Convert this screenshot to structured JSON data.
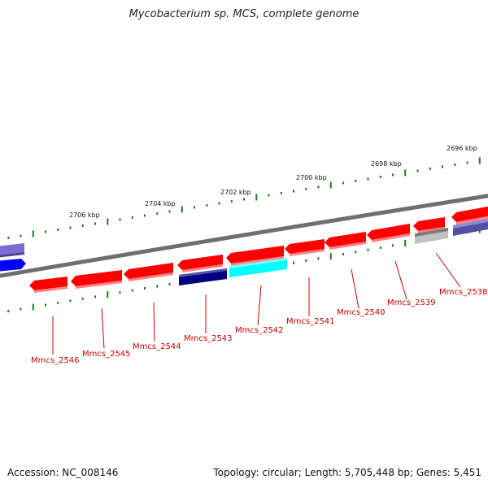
{
  "title": "Mycobacterium sp. MCS, complete genome",
  "accession": "Accession: NC_008146",
  "summary": "Topology: circular; Length: 5,705,448 bp; Genes: 5,451",
  "colors": {
    "backbone": "#808080",
    "gene_red": "#ff0000",
    "gene_navy": "#000080",
    "gene_cyan": "#00ffff",
    "gene_gray": "#c0c0c0",
    "gene_slate": "#5a5aa0",
    "gene_blue": "#0000ff",
    "tick": "#1a7a1a",
    "label": "#cc0000"
  },
  "kbp_labels": [
    "2706 kbp",
    "2704 kbp",
    "2702 kbp",
    "2700 kbp",
    "2698 kbp",
    "2696 kbp"
  ],
  "gene_labels": [
    "Mmcs_2546",
    "Mmcs_2545",
    "Mmcs_2544",
    "Mmcs_2543",
    "Mmcs_2542",
    "Mmcs_2541",
    "Mmcs_2540",
    "Mmcs_2539",
    "Mmcs_2538"
  ]
}
